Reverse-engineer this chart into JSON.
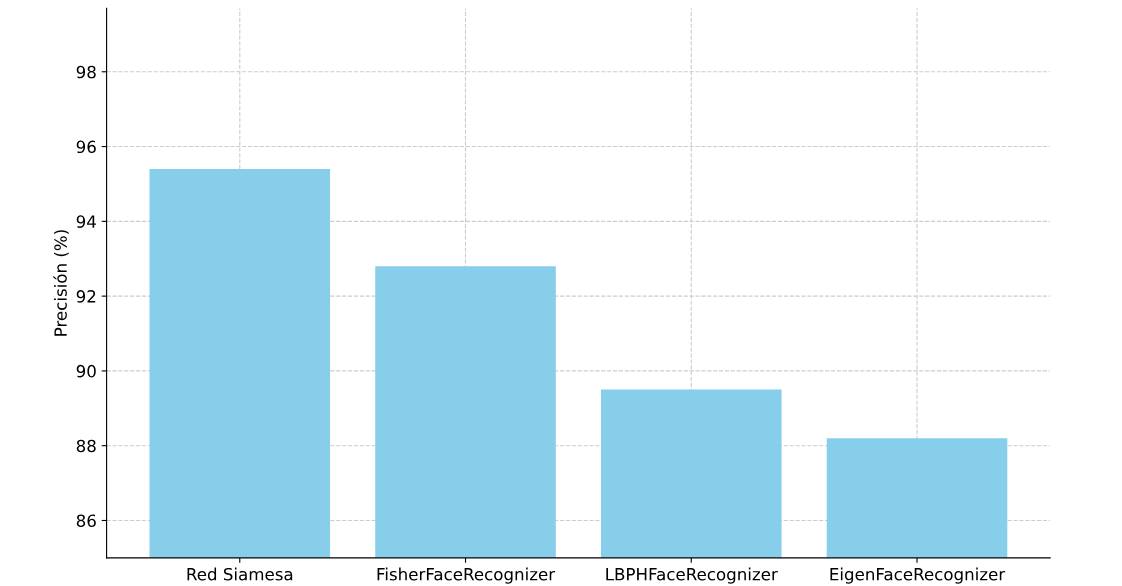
{
  "chart_data": {
    "type": "bar",
    "ylabel": "Precisión (%)",
    "categories": [
      "Red Siamesa",
      "FisherFaceRecognizer",
      "LBPHFaceRecognizer",
      "EigenFaceRecognizer"
    ],
    "values": [
      95.4,
      92.8,
      89.5,
      88.2
    ],
    "color": "#87ceeb",
    "ylim": [
      85,
      99.7
    ],
    "yticks": [
      86,
      88,
      90,
      92,
      94,
      96,
      98
    ],
    "grid": true,
    "line_style": "dashed"
  }
}
